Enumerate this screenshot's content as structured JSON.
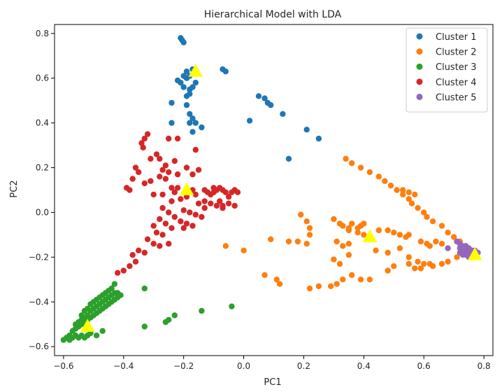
{
  "chart_data": {
    "type": "scatter",
    "title": "Hierarchical Model with LDA",
    "xlabel": "PC1",
    "ylabel": "PC2",
    "xlim": [
      -0.63,
      0.83
    ],
    "ylim": [
      -0.64,
      0.84
    ],
    "xticks": [
      -0.6,
      -0.4,
      -0.2,
      0.0,
      0.2,
      0.4,
      0.6,
      0.8
    ],
    "xtick_labels": [
      "−0.6",
      "−0.4",
      "−0.2",
      "0.0",
      "0.2",
      "0.4",
      "0.6",
      "0.8"
    ],
    "yticks": [
      -0.6,
      -0.4,
      -0.2,
      0.0,
      0.2,
      0.4,
      0.6,
      0.8
    ],
    "ytick_labels": [
      "−0.6",
      "−0.4",
      "−0.2",
      "0.0",
      "0.2",
      "0.4",
      "0.6",
      "0.8"
    ],
    "grid": false,
    "legend_position": "top-right",
    "series": [
      {
        "name": "Cluster 1",
        "color": "#1f77b4",
        "points": [
          [
            -0.21,
            0.78
          ],
          [
            -0.205,
            0.77
          ],
          [
            -0.2,
            0.76
          ],
          [
            -0.22,
            0.59
          ],
          [
            -0.2,
            0.61
          ],
          [
            -0.19,
            0.63
          ],
          [
            -0.18,
            0.61
          ],
          [
            -0.17,
            0.64
          ],
          [
            -0.19,
            0.6
          ],
          [
            -0.21,
            0.58
          ],
          [
            -0.2,
            0.56
          ],
          [
            -0.18,
            0.55
          ],
          [
            -0.19,
            0.52
          ],
          [
            -0.17,
            0.56
          ],
          [
            -0.16,
            0.58
          ],
          [
            -0.18,
            0.53
          ],
          [
            -0.24,
            0.49
          ],
          [
            -0.19,
            0.48
          ],
          [
            -0.18,
            0.44
          ],
          [
            -0.17,
            0.42
          ],
          [
            -0.18,
            0.4
          ],
          [
            -0.24,
            0.4
          ],
          [
            -0.16,
            0.4
          ],
          [
            -0.14,
            0.38
          ],
          [
            -0.17,
            0.36
          ],
          [
            -0.07,
            0.64
          ],
          [
            -0.06,
            0.63
          ],
          [
            0.05,
            0.52
          ],
          [
            0.07,
            0.51
          ],
          [
            0.08,
            0.49
          ],
          [
            0.09,
            0.48
          ],
          [
            0.13,
            0.44
          ],
          [
            0.02,
            0.41
          ],
          [
            0.21,
            0.37
          ],
          [
            0.25,
            0.33
          ],
          [
            0.15,
            0.24
          ]
        ]
      },
      {
        "name": "Cluster 2",
        "color": "#ff7f0e",
        "points": [
          [
            0.34,
            0.24
          ],
          [
            0.36,
            0.22
          ],
          [
            0.39,
            0.2
          ],
          [
            0.42,
            0.18
          ],
          [
            0.45,
            0.16
          ],
          [
            0.47,
            0.14
          ],
          [
            0.49,
            0.12
          ],
          [
            0.51,
            0.1
          ],
          [
            0.53,
            0.08
          ],
          [
            0.55,
            0.06
          ],
          [
            0.56,
            0.04
          ],
          [
            0.58,
            0.02
          ],
          [
            0.6,
            0.0
          ],
          [
            0.61,
            -0.02
          ],
          [
            0.63,
            -0.04
          ],
          [
            0.66,
            -0.06
          ],
          [
            0.68,
            -0.09
          ],
          [
            0.7,
            -0.11
          ],
          [
            0.72,
            -0.13
          ],
          [
            0.74,
            -0.15
          ],
          [
            0.53,
            0.1
          ],
          [
            0.55,
            0.09
          ],
          [
            0.57,
            0.08
          ],
          [
            0.3,
            -0.03
          ],
          [
            0.32,
            -0.05
          ],
          [
            0.33,
            -0.06
          ],
          [
            0.35,
            -0.07
          ],
          [
            0.36,
            -0.05
          ],
          [
            0.38,
            -0.07
          ],
          [
            0.39,
            -0.06
          ],
          [
            0.4,
            -0.05
          ],
          [
            0.35,
            -0.08
          ],
          [
            0.38,
            -0.09
          ],
          [
            0.4,
            -0.1
          ],
          [
            0.45,
            -0.08
          ],
          [
            0.48,
            -0.08
          ],
          [
            0.5,
            -0.09
          ],
          [
            0.52,
            -0.1
          ],
          [
            0.54,
            -0.11
          ],
          [
            0.55,
            -0.1
          ],
          [
            0.59,
            -0.13
          ],
          [
            0.61,
            -0.14
          ],
          [
            0.62,
            -0.15
          ],
          [
            0.64,
            -0.13
          ],
          [
            0.66,
            -0.14
          ],
          [
            0.44,
            -0.17
          ],
          [
            0.48,
            -0.18
          ],
          [
            0.52,
            -0.16
          ],
          [
            0.55,
            -0.2
          ],
          [
            0.58,
            -0.22
          ],
          [
            0.6,
            -0.23
          ],
          [
            0.62,
            -0.23
          ],
          [
            0.55,
            -0.23
          ],
          [
            0.57,
            -0.25
          ],
          [
            0.59,
            -0.25
          ],
          [
            0.63,
            -0.24
          ],
          [
            0.66,
            -0.23
          ],
          [
            0.68,
            -0.22
          ],
          [
            0.71,
            -0.2
          ],
          [
            0.19,
            -0.01
          ],
          [
            0.21,
            -0.04
          ],
          [
            0.22,
            -0.07
          ],
          [
            0.22,
            -0.1
          ],
          [
            0.31,
            -0.13
          ],
          [
            0.33,
            -0.15
          ],
          [
            0.35,
            -0.14
          ],
          [
            0.09,
            -0.12
          ],
          [
            0.15,
            -0.13
          ],
          [
            0.18,
            -0.13
          ],
          [
            0.21,
            -0.14
          ],
          [
            0.0,
            -0.17
          ],
          [
            -0.06,
            -0.15
          ],
          [
            0.07,
            -0.28
          ],
          [
            0.11,
            -0.3
          ],
          [
            0.12,
            -0.32
          ],
          [
            0.22,
            -0.34
          ],
          [
            0.25,
            -0.33
          ],
          [
            0.29,
            -0.33
          ],
          [
            0.31,
            -0.32
          ],
          [
            0.33,
            -0.3
          ],
          [
            0.36,
            -0.28
          ],
          [
            0.39,
            -0.3
          ],
          [
            0.42,
            -0.3
          ],
          [
            0.48,
            -0.26
          ],
          [
            0.5,
            -0.24
          ],
          [
            0.3,
            -0.21
          ],
          [
            0.32,
            -0.23
          ],
          [
            0.35,
            -0.19
          ]
        ]
      },
      {
        "name": "Cluster 3",
        "color": "#2ca02c",
        "points": [
          [
            -0.6,
            -0.57
          ],
          [
            -0.59,
            -0.56
          ],
          [
            -0.58,
            -0.55
          ],
          [
            -0.57,
            -0.56
          ],
          [
            -0.56,
            -0.55
          ],
          [
            -0.55,
            -0.56
          ],
          [
            -0.54,
            -0.55
          ],
          [
            -0.53,
            -0.56
          ],
          [
            -0.52,
            -0.55
          ],
          [
            -0.51,
            -0.54
          ],
          [
            -0.57,
            -0.53
          ],
          [
            -0.56,
            -0.52
          ],
          [
            -0.55,
            -0.51
          ],
          [
            -0.54,
            -0.5
          ],
          [
            -0.53,
            -0.49
          ],
          [
            -0.52,
            -0.48
          ],
          [
            -0.51,
            -0.47
          ],
          [
            -0.5,
            -0.46
          ],
          [
            -0.49,
            -0.45
          ],
          [
            -0.48,
            -0.44
          ],
          [
            -0.47,
            -0.43
          ],
          [
            -0.46,
            -0.42
          ],
          [
            -0.45,
            -0.41
          ],
          [
            -0.44,
            -0.4
          ],
          [
            -0.43,
            -0.39
          ],
          [
            -0.42,
            -0.38
          ],
          [
            -0.43,
            -0.36
          ],
          [
            -0.44,
            -0.37
          ],
          [
            -0.45,
            -0.38
          ],
          [
            -0.46,
            -0.39
          ],
          [
            -0.47,
            -0.4
          ],
          [
            -0.48,
            -0.41
          ],
          [
            -0.49,
            -0.42
          ],
          [
            -0.5,
            -0.43
          ],
          [
            -0.51,
            -0.44
          ],
          [
            -0.52,
            -0.46
          ],
          [
            -0.53,
            -0.47
          ],
          [
            -0.54,
            -0.48
          ],
          [
            -0.55,
            -0.49
          ],
          [
            -0.56,
            -0.5
          ],
          [
            -0.45,
            -0.35
          ],
          [
            -0.44,
            -0.34
          ],
          [
            -0.43,
            -0.32
          ],
          [
            -0.42,
            -0.36
          ],
          [
            -0.41,
            -0.37
          ],
          [
            -0.46,
            -0.36
          ],
          [
            -0.47,
            -0.37
          ],
          [
            -0.48,
            -0.38
          ],
          [
            -0.49,
            -0.39
          ],
          [
            -0.5,
            -0.4
          ],
          [
            -0.51,
            -0.41
          ],
          [
            -0.52,
            -0.43
          ],
          [
            -0.53,
            -0.44
          ],
          [
            -0.54,
            -0.46
          ],
          [
            -0.58,
            -0.57
          ],
          [
            -0.49,
            -0.55
          ],
          [
            -0.47,
            -0.53
          ],
          [
            -0.33,
            -0.34
          ],
          [
            -0.33,
            -0.51
          ],
          [
            -0.26,
            -0.49
          ],
          [
            -0.25,
            -0.48
          ],
          [
            -0.23,
            -0.46
          ],
          [
            -0.14,
            -0.44
          ],
          [
            -0.04,
            -0.42
          ]
        ]
      },
      {
        "name": "Cluster 4",
        "color": "#d62728",
        "points": [
          [
            -0.32,
            0.35
          ],
          [
            -0.33,
            0.33
          ],
          [
            -0.34,
            0.31
          ],
          [
            -0.335,
            0.29
          ],
          [
            -0.31,
            0.24
          ],
          [
            -0.29,
            0.26
          ],
          [
            -0.28,
            0.24
          ],
          [
            -0.23,
            0.23
          ],
          [
            -0.26,
            0.21
          ],
          [
            -0.27,
            0.19
          ],
          [
            -0.36,
            0.2
          ],
          [
            -0.35,
            0.18
          ],
          [
            -0.37,
            0.15
          ],
          [
            -0.33,
            0.13
          ],
          [
            -0.31,
            0.14
          ],
          [
            -0.28,
            0.16
          ],
          [
            -0.26,
            0.15
          ],
          [
            -0.25,
            0.18
          ],
          [
            -0.22,
            0.17
          ],
          [
            -0.19,
            0.2
          ],
          [
            -0.17,
            0.17
          ],
          [
            -0.15,
            0.19
          ],
          [
            -0.25,
            0.33
          ],
          [
            -0.22,
            0.33
          ],
          [
            -0.16,
            0.28
          ],
          [
            -0.39,
            0.11
          ],
          [
            -0.38,
            0.1
          ],
          [
            -0.3,
            0.08
          ],
          [
            -0.27,
            0.08
          ],
          [
            -0.24,
            0.05
          ],
          [
            -0.21,
            0.06
          ],
          [
            -0.19,
            0.07
          ],
          [
            -0.17,
            0.1
          ],
          [
            -0.16,
            0.08
          ],
          [
            -0.13,
            0.1
          ],
          [
            -0.12,
            0.09
          ],
          [
            -0.11,
            0.08
          ],
          [
            -0.1,
            0.09
          ],
          [
            -0.1,
            0.11
          ],
          [
            -0.09,
            0.1
          ],
          [
            -0.08,
            0.11
          ],
          [
            -0.07,
            0.1
          ],
          [
            -0.06,
            0.09
          ],
          [
            -0.04,
            0.09
          ],
          [
            -0.03,
            0.1
          ],
          [
            -0.02,
            0.09
          ],
          [
            -0.08,
            0.05
          ],
          [
            -0.07,
            0.03
          ],
          [
            -0.05,
            0.04
          ],
          [
            -0.15,
            0.04
          ],
          [
            -0.13,
            0.02
          ],
          [
            -0.11,
            0.04
          ],
          [
            -0.09,
            0.03
          ],
          [
            -0.07,
            0.02
          ],
          [
            -0.2,
            0.01
          ],
          [
            -0.18,
            0.0
          ],
          [
            -0.16,
            -0.01
          ],
          [
            -0.14,
            -0.02
          ],
          [
            -0.27,
            0.02
          ],
          [
            -0.25,
            0.0
          ],
          [
            -0.23,
            -0.02
          ],
          [
            -0.21,
            -0.04
          ],
          [
            -0.19,
            -0.05
          ],
          [
            -0.17,
            -0.06
          ],
          [
            -0.28,
            -0.03
          ],
          [
            -0.26,
            -0.05
          ],
          [
            -0.24,
            -0.07
          ],
          [
            -0.3,
            -0.06
          ],
          [
            -0.29,
            -0.09
          ],
          [
            -0.27,
            -0.1
          ],
          [
            -0.32,
            -0.12
          ],
          [
            -0.3,
            -0.14
          ],
          [
            -0.28,
            -0.15
          ],
          [
            -0.25,
            -0.14
          ],
          [
            -0.33,
            -0.18
          ],
          [
            -0.35,
            -0.17
          ],
          [
            -0.37,
            -0.19
          ],
          [
            -0.36,
            -0.22
          ],
          [
            -0.38,
            -0.24
          ],
          [
            -0.4,
            -0.26
          ],
          [
            -0.42,
            -0.27
          ],
          [
            -0.03,
            0.03
          ],
          [
            -0.05,
            0.07
          ],
          [
            -0.13,
            0.05
          ],
          [
            -0.2,
            -0.07
          ],
          [
            -0.22,
            0.11
          ],
          [
            -0.23,
            0.09
          ],
          [
            -0.24,
            0.11
          ]
        ]
      },
      {
        "name": "Cluster 5",
        "color": "#9467bd",
        "points": [
          [
            0.71,
            -0.13
          ],
          [
            0.72,
            -0.14
          ],
          [
            0.72,
            -0.16
          ],
          [
            0.73,
            -0.15
          ],
          [
            0.73,
            -0.17
          ],
          [
            0.74,
            -0.16
          ],
          [
            0.74,
            -0.18
          ],
          [
            0.75,
            -0.17
          ],
          [
            0.75,
            -0.18
          ],
          [
            0.76,
            -0.17
          ],
          [
            0.76,
            -0.19
          ],
          [
            0.77,
            -0.18
          ],
          [
            0.72,
            -0.18
          ],
          [
            0.73,
            -0.19
          ],
          [
            0.74,
            -0.19
          ],
          [
            0.75,
            -0.2
          ],
          [
            0.76,
            -0.18
          ],
          [
            0.77,
            -0.17
          ],
          [
            0.78,
            -0.18
          ],
          [
            0.73,
            -0.16
          ],
          [
            0.68,
            -0.16
          ],
          [
            0.74,
            -0.15
          ],
          [
            0.75,
            -0.16
          ]
        ]
      }
    ],
    "centroids": {
      "color": "#ffff00",
      "marker": "triangle",
      "points": [
        [
          -0.16,
          0.63
        ],
        [
          0.42,
          -0.11
        ],
        [
          -0.52,
          -0.51
        ],
        [
          -0.19,
          0.1
        ],
        [
          0.77,
          -0.19
        ]
      ]
    }
  }
}
